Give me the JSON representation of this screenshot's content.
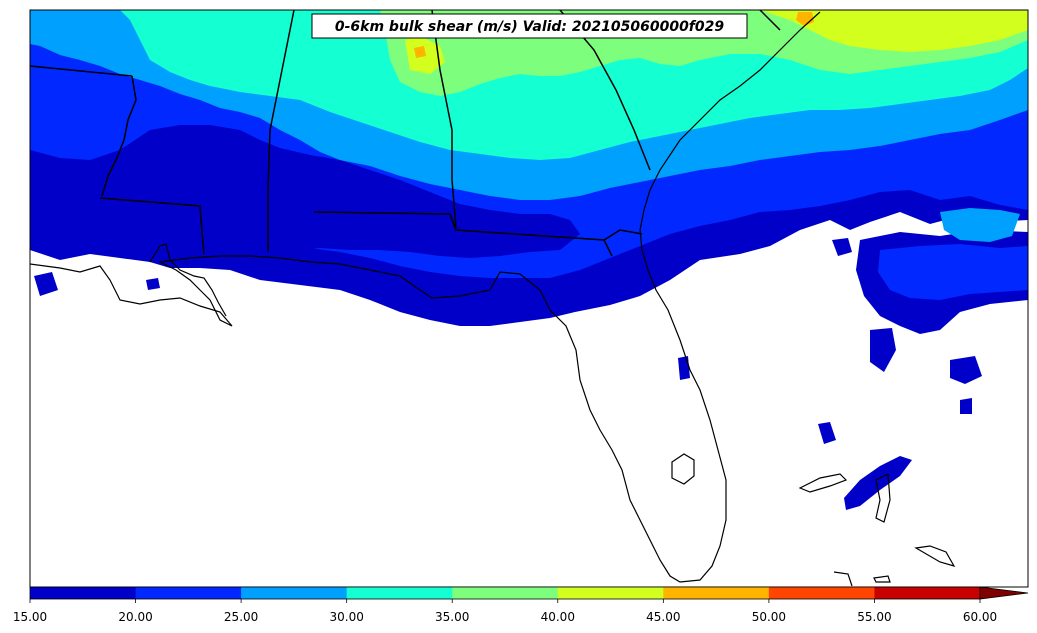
{
  "title": "0-6km bulk shear (m/s) Valid: 202105060000f029",
  "colorbar": {
    "ticks": [
      "15.00",
      "20.00",
      "25.00",
      "30.00",
      "35.00",
      "40.00",
      "45.00",
      "50.00",
      "55.00",
      "60.00"
    ],
    "colors": [
      "#0000c8",
      "#0028ff",
      "#00a0ff",
      "#14ffd2",
      "#7dff7d",
      "#d2ff1e",
      "#ffb400",
      "#ff4600",
      "#c80000"
    ],
    "extend_color": "#800000"
  },
  "map": {
    "region": "Southeastern United States",
    "background_color": "#ffffff",
    "coastline_color": "#000000"
  }
}
